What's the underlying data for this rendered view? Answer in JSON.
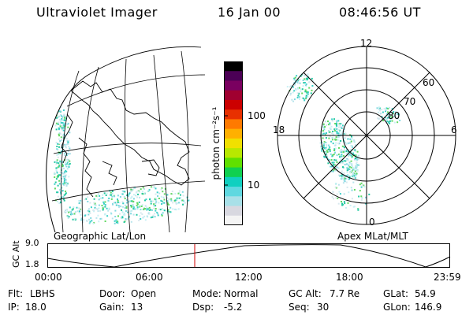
{
  "header": {
    "title": "Ultraviolet Imager",
    "date": "16 Jan 00",
    "time": "08:46:56 UT"
  },
  "left_panel": {
    "label": "Geographic Lat/Lon"
  },
  "right_panel": {
    "label": "Apex MLat/MLT",
    "mlt_labels": {
      "top": "12",
      "left": "18",
      "right": "6",
      "bottom": "0"
    },
    "lat_labels": [
      "60",
      "70",
      "80"
    ]
  },
  "colorbar": {
    "unit": "photon cm⁻²s⁻¹",
    "tick_labels": [
      "100",
      "10"
    ],
    "colors": [
      "#000000",
      "#4b0055",
      "#7a0060",
      "#a00030",
      "#cc0000",
      "#e83000",
      "#ff7a00",
      "#ffb000",
      "#f0e000",
      "#b8e800",
      "#60e000",
      "#10d050",
      "#10d0c0",
      "#5fd8e0",
      "#a8e0e8",
      "#d8d8e0",
      "#f4f4f4"
    ]
  },
  "timeline": {
    "ylabel": "GC Alt",
    "y_ticks": [
      "9.0",
      "1.8"
    ],
    "x_ticks": [
      "00:00",
      "06:00",
      "12:00",
      "18:00",
      "23:59"
    ],
    "marker_color": "#d00000"
  },
  "footer": {
    "row1": [
      {
        "key": "Flt:",
        "val": "LBHS"
      },
      {
        "key": "Door:",
        "val": "Open"
      },
      {
        "key": "Mode:",
        "val": "Normal"
      },
      {
        "key": "GC Alt:",
        "val": "7.7 Re"
      },
      {
        "key": "GLat:",
        "val": "54.9"
      }
    ],
    "row2": [
      {
        "key": "IP:",
        "val": "18.0"
      },
      {
        "key": "Gain:",
        "val": "13"
      },
      {
        "key": "Dsp:",
        "val": "-5.2"
      },
      {
        "key": "Seq:",
        "val": "30"
      },
      {
        "key": "GLon:",
        "val": "146.9"
      }
    ]
  }
}
